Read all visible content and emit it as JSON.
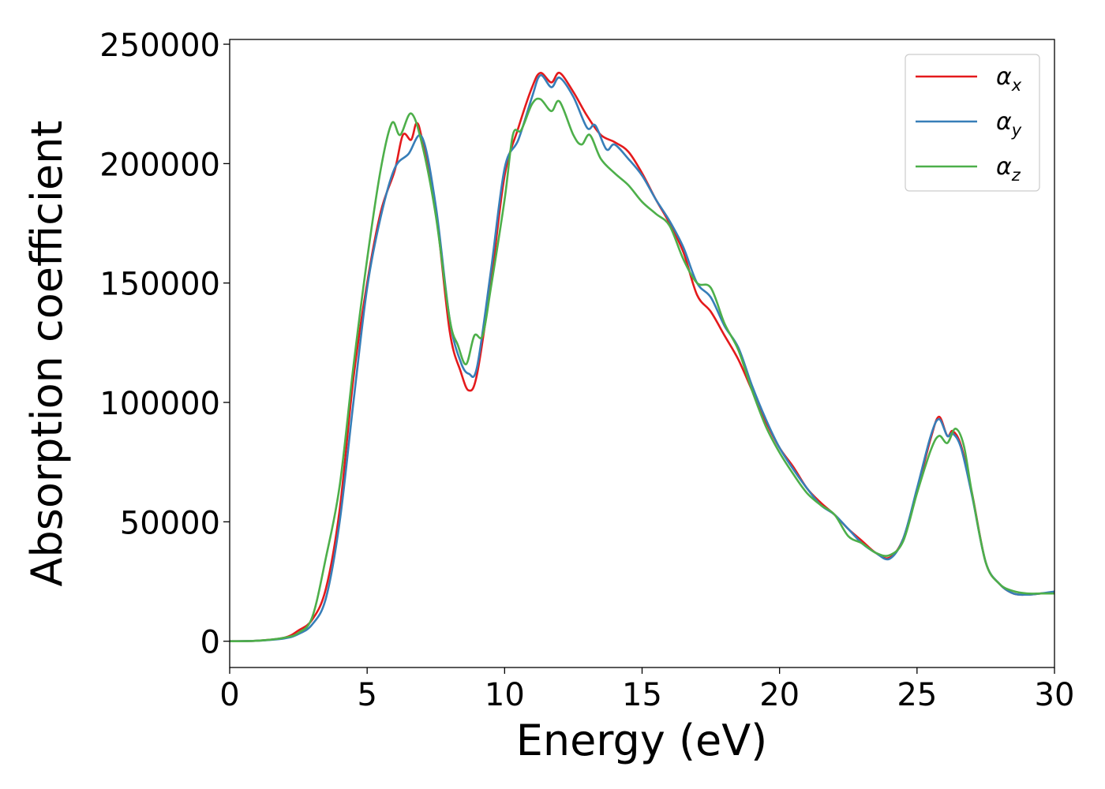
{
  "chart_data": {
    "type": "line",
    "title": "",
    "xlabel": "Energy (eV)",
    "ylabel": "Absorption coefficient",
    "xlim": [
      0,
      30
    ],
    "ylim": [
      -11000,
      252000
    ],
    "xticks": [
      0,
      5,
      10,
      15,
      20,
      25,
      30
    ],
    "xtick_labels": [
      "0",
      "5",
      "10",
      "15",
      "20",
      "25",
      "30"
    ],
    "yticks": [
      0,
      50000,
      100000,
      150000,
      200000,
      250000
    ],
    "ytick_labels": [
      "0",
      "50000",
      "100000",
      "150000",
      "200000",
      "250000"
    ],
    "grid": false,
    "legend_position": "top-right",
    "series": [
      {
        "name": "α",
        "subscript": "x",
        "color": "#e41a1c",
        "points": [
          [
            0,
            0
          ],
          [
            1,
            200
          ],
          [
            2,
            1500
          ],
          [
            2.5,
            4500
          ],
          [
            3,
            9000
          ],
          [
            3.5,
            22000
          ],
          [
            4,
            55000
          ],
          [
            4.5,
            110000
          ],
          [
            5,
            150000
          ],
          [
            5.5,
            180000
          ],
          [
            6,
            197000
          ],
          [
            6.3,
            212000
          ],
          [
            6.6,
            210000
          ],
          [
            6.8,
            217000
          ],
          [
            7,
            210000
          ],
          [
            7.5,
            180000
          ],
          [
            8,
            130000
          ],
          [
            8.4,
            113000
          ],
          [
            8.7,
            105000
          ],
          [
            9,
            112000
          ],
          [
            9.5,
            150000
          ],
          [
            10,
            195000
          ],
          [
            10.5,
            215000
          ],
          [
            11,
            232000
          ],
          [
            11.3,
            238000
          ],
          [
            11.7,
            234000
          ],
          [
            12,
            238000
          ],
          [
            12.5,
            230000
          ],
          [
            13,
            220000
          ],
          [
            13.5,
            212000
          ],
          [
            14,
            209000
          ],
          [
            14.5,
            205000
          ],
          [
            15,
            196000
          ],
          [
            15.5,
            185000
          ],
          [
            16,
            175000
          ],
          [
            16.5,
            163000
          ],
          [
            17,
            145000
          ],
          [
            17.5,
            138000
          ],
          [
            18,
            128000
          ],
          [
            18.5,
            118000
          ],
          [
            19,
            105000
          ],
          [
            19.5,
            92000
          ],
          [
            20,
            81000
          ],
          [
            20.5,
            73000
          ],
          [
            21,
            64000
          ],
          [
            21.5,
            58000
          ],
          [
            22,
            53000
          ],
          [
            22.5,
            47000
          ],
          [
            23,
            42000
          ],
          [
            23.5,
            37000
          ],
          [
            24,
            35000
          ],
          [
            24.5,
            43000
          ],
          [
            25,
            63000
          ],
          [
            25.5,
            85000
          ],
          [
            25.8,
            94000
          ],
          [
            26.1,
            86000
          ],
          [
            26.3,
            88000
          ],
          [
            26.6,
            82000
          ],
          [
            27,
            62000
          ],
          [
            27.5,
            33000
          ],
          [
            28,
            24000
          ],
          [
            28.5,
            20000
          ],
          [
            29,
            19500
          ],
          [
            29.5,
            20000
          ],
          [
            30,
            20500
          ]
        ]
      },
      {
        "name": "α",
        "subscript": "y",
        "color": "#377eb8",
        "points": [
          [
            0,
            0
          ],
          [
            1,
            200
          ],
          [
            2,
            1200
          ],
          [
            2.5,
            3000
          ],
          [
            3,
            7000
          ],
          [
            3.5,
            18000
          ],
          [
            4,
            50000
          ],
          [
            4.5,
            100000
          ],
          [
            5,
            148000
          ],
          [
            5.5,
            178000
          ],
          [
            6,
            198000
          ],
          [
            6.5,
            204000
          ],
          [
            7,
            211000
          ],
          [
            7.5,
            182000
          ],
          [
            8,
            135000
          ],
          [
            8.4,
            117000
          ],
          [
            8.7,
            112000
          ],
          [
            9,
            115000
          ],
          [
            9.5,
            155000
          ],
          [
            10,
            198000
          ],
          [
            10.5,
            210000
          ],
          [
            11,
            228000
          ],
          [
            11.3,
            237000
          ],
          [
            11.7,
            232000
          ],
          [
            12,
            236000
          ],
          [
            12.5,
            228000
          ],
          [
            13,
            215000
          ],
          [
            13.3,
            216000
          ],
          [
            13.7,
            206000
          ],
          [
            14,
            208000
          ],
          [
            14.5,
            202000
          ],
          [
            15,
            195000
          ],
          [
            15.5,
            185000
          ],
          [
            16,
            176000
          ],
          [
            16.5,
            165000
          ],
          [
            17,
            150000
          ],
          [
            17.5,
            144000
          ],
          [
            18,
            132000
          ],
          [
            18.5,
            123000
          ],
          [
            19,
            107000
          ],
          [
            19.5,
            93000
          ],
          [
            20,
            81000
          ],
          [
            20.5,
            72000
          ],
          [
            21,
            64000
          ],
          [
            21.5,
            57000
          ],
          [
            22,
            53000
          ],
          [
            22.5,
            47000
          ],
          [
            23,
            41000
          ],
          [
            23.5,
            37000
          ],
          [
            24,
            34500
          ],
          [
            24.5,
            43000
          ],
          [
            25,
            64000
          ],
          [
            25.5,
            86000
          ],
          [
            25.8,
            93000
          ],
          [
            26.1,
            86000
          ],
          [
            26.3,
            87000
          ],
          [
            26.6,
            81000
          ],
          [
            27,
            61000
          ],
          [
            27.5,
            33000
          ],
          [
            28,
            24000
          ],
          [
            28.5,
            20000
          ],
          [
            29,
            19500
          ],
          [
            29.5,
            20000
          ],
          [
            30,
            20800
          ]
        ]
      },
      {
        "name": "α",
        "subscript": "z",
        "color": "#4daf4a",
        "points": [
          [
            0,
            0
          ],
          [
            1,
            200
          ],
          [
            2,
            1500
          ],
          [
            2.5,
            3500
          ],
          [
            3,
            10000
          ],
          [
            3.5,
            35000
          ],
          [
            4,
            65000
          ],
          [
            4.5,
            115000
          ],
          [
            5,
            160000
          ],
          [
            5.5,
            198000
          ],
          [
            5.9,
            217000
          ],
          [
            6.2,
            212000
          ],
          [
            6.6,
            221000
          ],
          [
            7,
            208000
          ],
          [
            7.5,
            178000
          ],
          [
            8,
            135000
          ],
          [
            8.3,
            124000
          ],
          [
            8.6,
            116000
          ],
          [
            8.9,
            128000
          ],
          [
            9.2,
            128000
          ],
          [
            9.5,
            148000
          ],
          [
            10,
            185000
          ],
          [
            10.3,
            212000
          ],
          [
            10.6,
            214000
          ],
          [
            11,
            225000
          ],
          [
            11.3,
            227000
          ],
          [
            11.7,
            222000
          ],
          [
            12,
            226000
          ],
          [
            12.5,
            212000
          ],
          [
            12.8,
            208000
          ],
          [
            13.1,
            212000
          ],
          [
            13.5,
            202000
          ],
          [
            14,
            196000
          ],
          [
            14.5,
            191000
          ],
          [
            15,
            184000
          ],
          [
            15.5,
            179000
          ],
          [
            16,
            174000
          ],
          [
            16.5,
            160000
          ],
          [
            17,
            150000
          ],
          [
            17.5,
            148000
          ],
          [
            18,
            133000
          ],
          [
            18.5,
            122000
          ],
          [
            19,
            105000
          ],
          [
            19.5,
            90000
          ],
          [
            20,
            79000
          ],
          [
            20.5,
            70000
          ],
          [
            21,
            62000
          ],
          [
            21.5,
            57000
          ],
          [
            22,
            53000
          ],
          [
            22.5,
            44000
          ],
          [
            23,
            41000
          ],
          [
            23.5,
            37000
          ],
          [
            24,
            36000
          ],
          [
            24.5,
            42000
          ],
          [
            25,
            62000
          ],
          [
            25.5,
            80000
          ],
          [
            25.8,
            86000
          ],
          [
            26.1,
            83000
          ],
          [
            26.4,
            89000
          ],
          [
            26.7,
            82000
          ],
          [
            27,
            62000
          ],
          [
            27.5,
            33000
          ],
          [
            28,
            24000
          ],
          [
            28.5,
            21000
          ],
          [
            29,
            20000
          ],
          [
            29.5,
            20000
          ],
          [
            30,
            20000
          ]
        ]
      }
    ]
  }
}
